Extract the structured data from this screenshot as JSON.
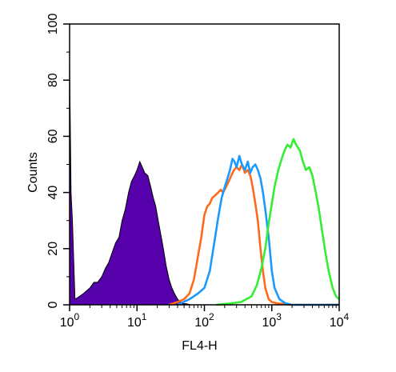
{
  "chart_data": {
    "type": "line",
    "title": "",
    "xlabel": "FL4-H",
    "ylabel": "Counts",
    "x_scale": "log",
    "xlim": [
      1,
      10000
    ],
    "ylim": [
      0,
      100
    ],
    "x_ticks": [
      {
        "value": 1,
        "base": "10",
        "exp": "0"
      },
      {
        "value": 10,
        "base": "10",
        "exp": "1"
      },
      {
        "value": 100,
        "base": "10",
        "exp": "2"
      },
      {
        "value": 1000,
        "base": "10",
        "exp": "3"
      },
      {
        "value": 10000,
        "base": "10",
        "exp": "4"
      }
    ],
    "y_ticks": [
      "0",
      "20",
      "40",
      "60",
      "80",
      "100"
    ],
    "grid": false,
    "series": [
      {
        "color": "#5500aa",
        "fill": true,
        "x": [
          1,
          1.05,
          1.1,
          1.2,
          1.4,
          1.6,
          1.8,
          2.0,
          2.3,
          2.6,
          3.0,
          3.4,
          3.8,
          4.2,
          4.8,
          5.4,
          6.0,
          6.7,
          7.5,
          8.3,
          9.2,
          10.0,
          11.0,
          12.0,
          13.0,
          14.5,
          16.0,
          17.5,
          19.0,
          21.0,
          23.0,
          25.0,
          27.0,
          30.0,
          33.0,
          36.0,
          40.0,
          44.0,
          48.0,
          55.0,
          62.0,
          70.0,
          80.0
        ],
        "y": [
          85,
          40,
          30,
          2,
          3,
          4,
          5,
          6,
          8,
          8,
          10,
          13,
          15,
          18,
          22,
          24,
          30,
          34,
          40,
          44,
          46,
          48,
          51,
          49,
          47,
          46,
          42,
          38,
          35,
          29,
          24,
          19,
          14,
          9,
          6,
          4,
          2,
          1,
          0.5,
          0.3,
          0,
          0,
          0
        ]
      },
      {
        "color": "#ff6a1a",
        "fill": false,
        "x": [
          30,
          40,
          50,
          60,
          70,
          80,
          90,
          100,
          110,
          120,
          130,
          145,
          160,
          175,
          190,
          210,
          230,
          250,
          275,
          300,
          330,
          360,
          400,
          440,
          480,
          520,
          570,
          620,
          680,
          740,
          800,
          900,
          1000,
          1200,
          1500,
          2000,
          4000,
          10000
        ],
        "y": [
          0,
          1,
          2,
          4,
          9,
          17,
          24,
          32,
          35,
          36,
          38,
          39,
          40,
          41,
          40,
          42,
          44,
          46,
          48,
          49,
          48,
          50,
          47,
          48,
          46,
          42,
          36,
          30,
          20,
          12,
          6,
          2,
          1,
          0.5,
          0.3,
          0,
          0,
          0
        ]
      },
      {
        "color": "#1a9aff",
        "fill": false,
        "x": [
          40,
          60,
          80,
          100,
          120,
          140,
          160,
          180,
          200,
          220,
          240,
          260,
          280,
          300,
          330,
          360,
          400,
          440,
          480,
          520,
          570,
          620,
          680,
          740,
          800,
          900,
          1000,
          1100,
          1300,
          1600,
          2000,
          4000,
          10000
        ],
        "y": [
          0,
          2,
          4,
          6,
          12,
          22,
          31,
          38,
          42,
          45,
          48,
          52,
          51,
          49,
          53,
          50,
          48,
          51,
          47,
          49,
          50,
          48,
          45,
          40,
          34,
          24,
          12,
          6,
          2,
          0.5,
          0,
          0,
          0
        ]
      },
      {
        "color": "#33ee33",
        "fill": false,
        "x": [
          150,
          250,
          350,
          500,
          600,
          700,
          800,
          900,
          1000,
          1100,
          1250,
          1400,
          1550,
          1700,
          1900,
          2100,
          2300,
          2600,
          2900,
          3200,
          3600,
          4000,
          4500,
          5000,
          5600,
          6300,
          7000,
          8000,
          9000,
          10000
        ],
        "y": [
          0,
          0.5,
          1,
          3,
          7,
          13,
          20,
          29,
          36,
          42,
          48,
          52,
          55,
          57,
          56,
          59,
          57,
          55,
          51,
          48,
          49,
          46,
          40,
          34,
          26,
          18,
          12,
          6,
          3,
          2
        ]
      }
    ]
  }
}
